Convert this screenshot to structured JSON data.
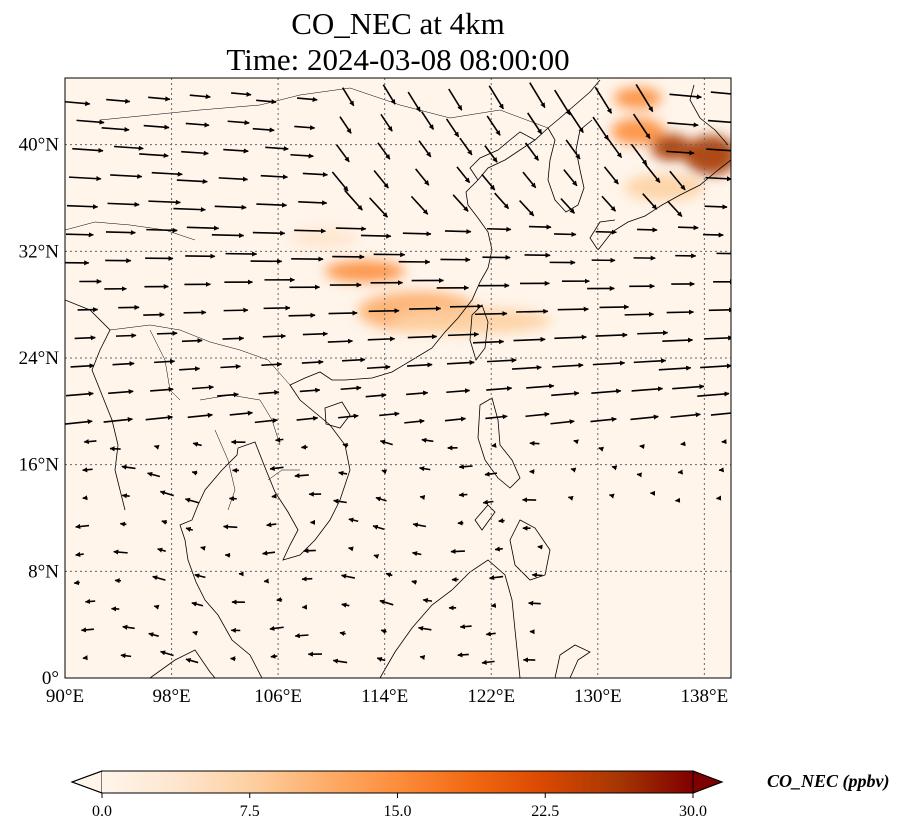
{
  "title": {
    "line1": "CO_NEC at 4km",
    "line2": "Time: 2024-03-08 08:00:00"
  },
  "map": {
    "lon_range": [
      90,
      140
    ],
    "lat_range": [
      0,
      45
    ],
    "lon_ticks": [
      {
        "value": 90,
        "label": "90°E"
      },
      {
        "value": 98,
        "label": "98°E"
      },
      {
        "value": 106,
        "label": "106°E"
      },
      {
        "value": 114,
        "label": "114°E"
      },
      {
        "value": 122,
        "label": "122°E"
      },
      {
        "value": 130,
        "label": "130°E"
      },
      {
        "value": 138,
        "label": "138°E"
      }
    ],
    "lat_ticks": [
      {
        "value": 0,
        "label": "0°"
      },
      {
        "value": 8,
        "label": "8°N"
      },
      {
        "value": 16,
        "label": "16°N"
      },
      {
        "value": 24,
        "label": "24°N"
      },
      {
        "value": 32,
        "label": "32°N"
      },
      {
        "value": 40,
        "label": "40°N"
      }
    ],
    "gridlines": true,
    "background_color": "#fff5eb",
    "plumes": [
      {
        "lon": 112.5,
        "lat": 30.5,
        "value": 14,
        "rx": 3.0,
        "ry": 0.8
      },
      {
        "lon": 116.5,
        "lat": 27.5,
        "value": 12,
        "rx": 4.5,
        "ry": 1.5
      },
      {
        "lon": 120.5,
        "lat": 26.8,
        "value": 7,
        "rx": 6.0,
        "ry": 1.0
      },
      {
        "lon": 109.5,
        "lat": 33.0,
        "value": 5,
        "rx": 2.5,
        "ry": 0.8
      },
      {
        "lon": 135.5,
        "lat": 39.8,
        "value": 28,
        "rx": 1.5,
        "ry": 1.0
      },
      {
        "lon": 138.5,
        "lat": 39.2,
        "value": 28,
        "rx": 2.0,
        "ry": 1.5
      },
      {
        "lon": 133.0,
        "lat": 41.0,
        "value": 16,
        "rx": 2.0,
        "ry": 1.0
      },
      {
        "lon": 133.0,
        "lat": 43.5,
        "value": 14,
        "rx": 1.8,
        "ry": 0.8
      },
      {
        "lon": 135.0,
        "lat": 36.8,
        "value": 8,
        "rx": 3.0,
        "ry": 1.0
      }
    ]
  },
  "colorbar": {
    "min": 0,
    "max": 30,
    "ticks": [
      {
        "value": 0,
        "label": "0.0"
      },
      {
        "value": 7.5,
        "label": "7.5"
      },
      {
        "value": 15,
        "label": "15.0"
      },
      {
        "value": 22.5,
        "label": "22.5"
      },
      {
        "value": 30,
        "label": "30.0"
      }
    ],
    "title": "CO_NEC (ppbv)",
    "colors": [
      "#fff5eb",
      "#fee6ce",
      "#fdd0a2",
      "#fdae6b",
      "#fd8d3c",
      "#f16913",
      "#d94801",
      "#a63603",
      "#7f0000"
    ]
  }
}
